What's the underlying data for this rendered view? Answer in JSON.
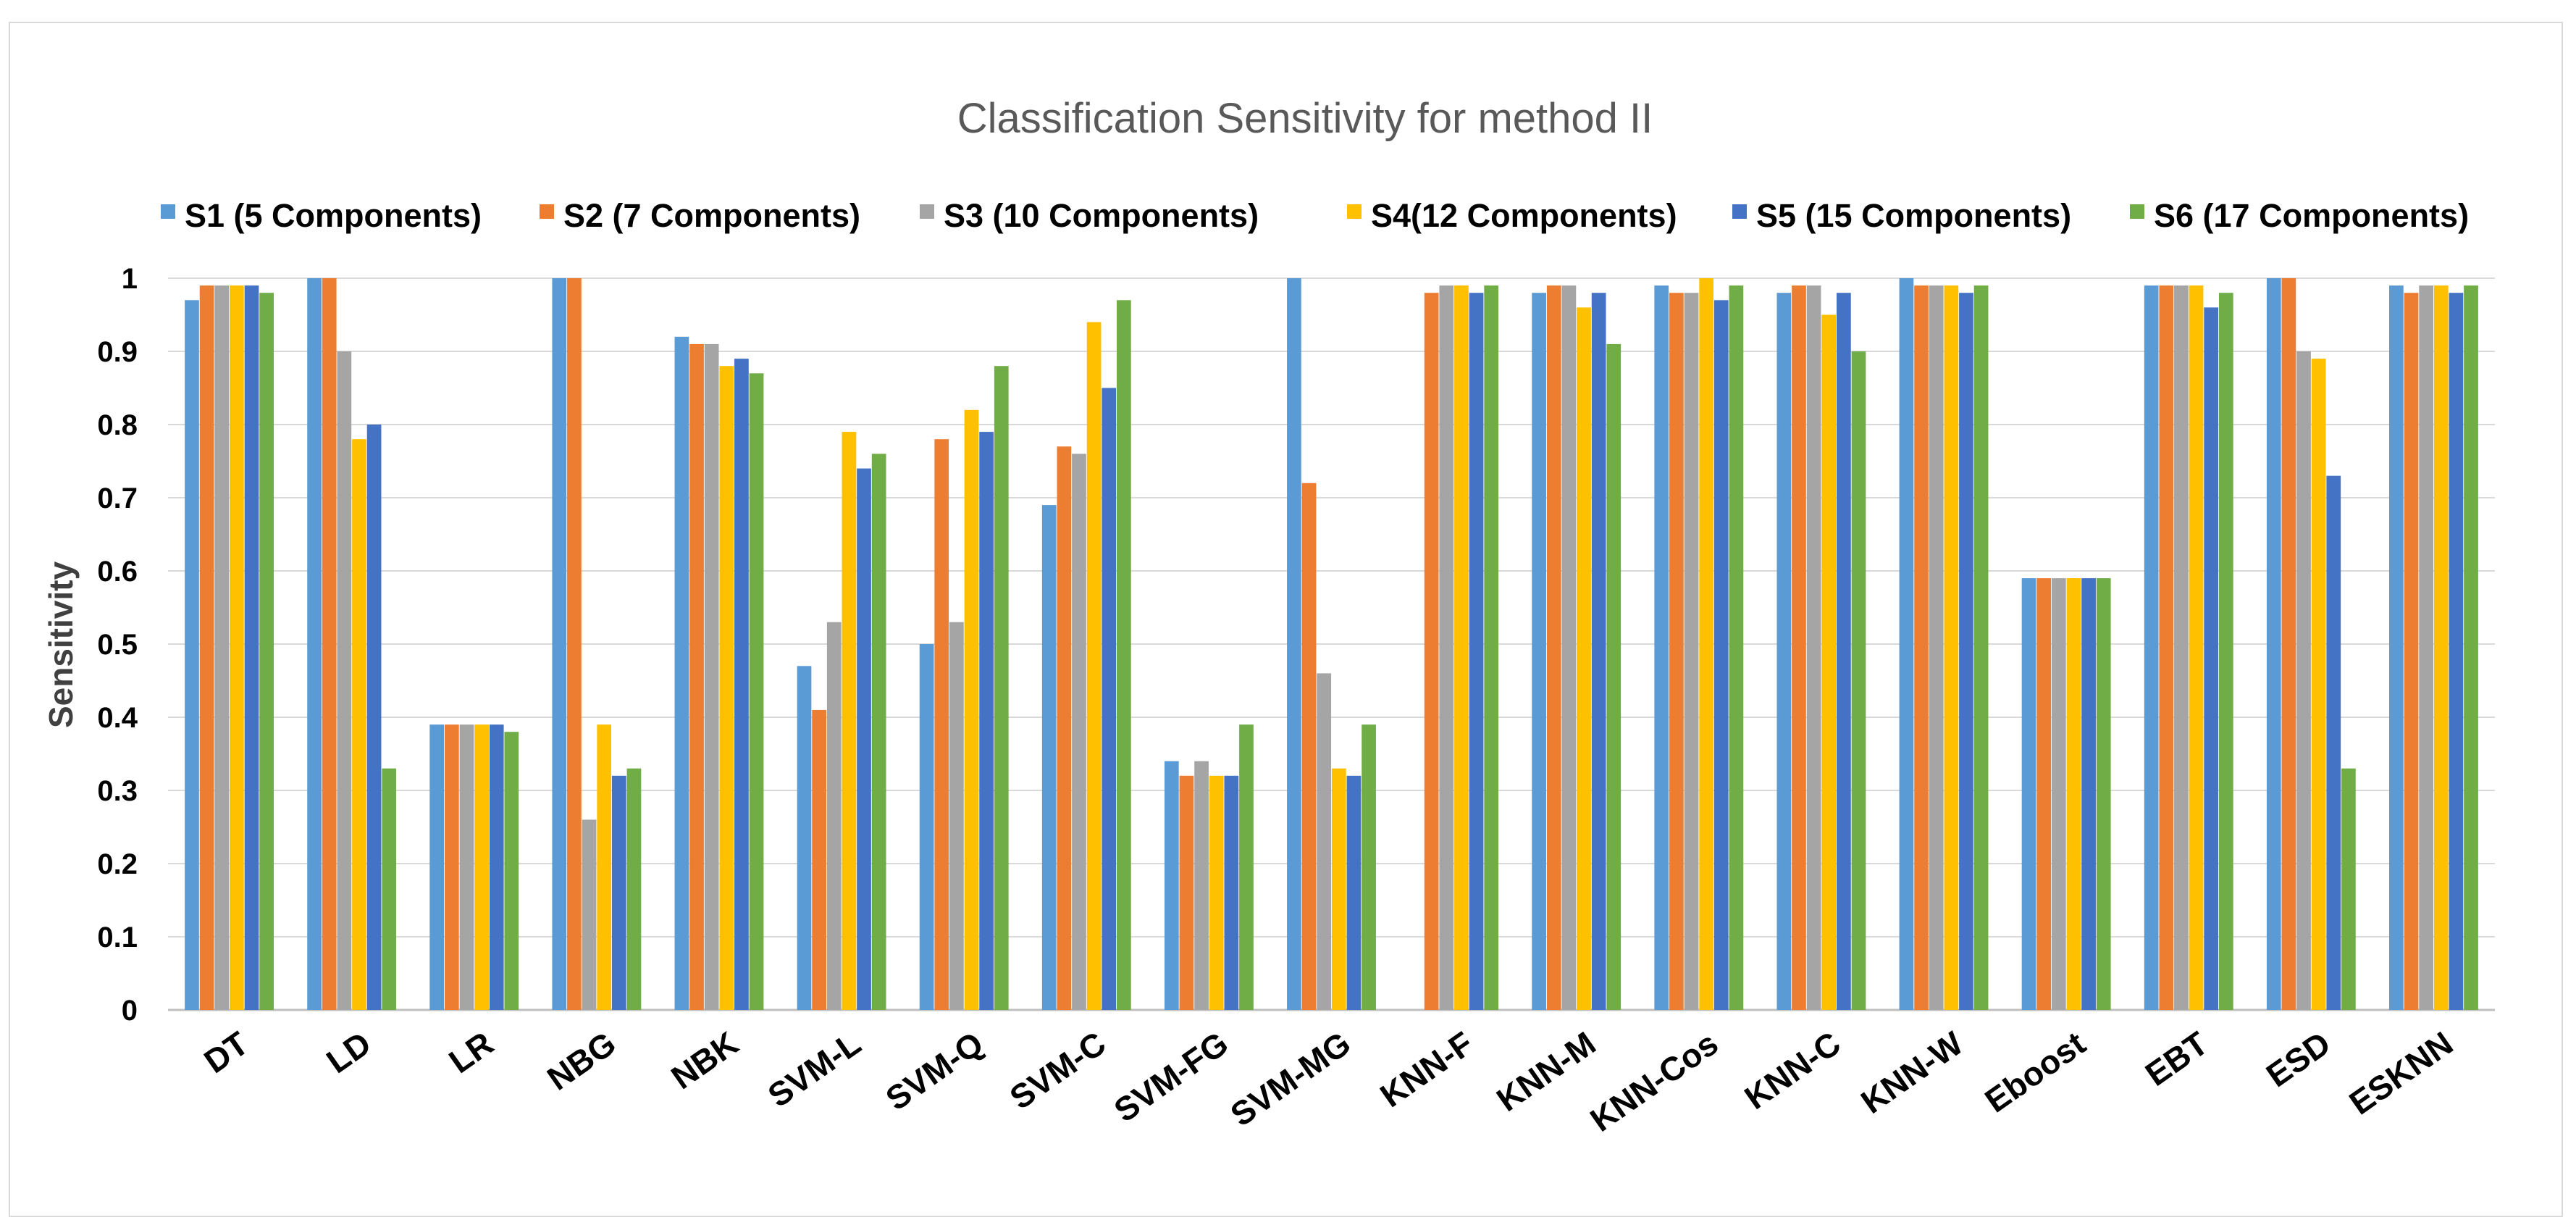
{
  "chart_data": {
    "type": "bar",
    "title": "Classification Sensitivity for method  II",
    "xlabel": "",
    "ylabel": "Sensitivity",
    "ylim": [
      0,
      1
    ],
    "yticks": [
      "0",
      "0.1",
      "0.2",
      "0.3",
      "0.4",
      "0.5",
      "0.6",
      "0.7",
      "0.8",
      "0.9",
      "1"
    ],
    "grid": true,
    "legend_position": "top",
    "categories": [
      "DT",
      "LD",
      "LR",
      "NBG",
      "NBK",
      "SVM-L",
      "SVM-Q",
      "SVM-C",
      "SVM-FG",
      "SVM-MG",
      "KNN-F",
      "KNN-M",
      "KNN-Cos",
      "KNN-C",
      "KNN-W",
      "Eboost",
      "EBT",
      "ESD",
      "ESKNN"
    ],
    "series": [
      {
        "name": "S1 (5 Components)",
        "color": "#5B9BD5",
        "values": [
          0.97,
          1.0,
          0.39,
          1.0,
          0.92,
          0.47,
          0.5,
          0.69,
          0.34,
          1.0,
          0.0,
          0.98,
          0.99,
          0.98,
          1.0,
          0.59,
          0.99,
          1.0,
          0.99
        ]
      },
      {
        "name": "S2 (7 Components)",
        "color": "#ED7D31",
        "values": [
          0.99,
          1.0,
          0.39,
          1.0,
          0.91,
          0.41,
          0.78,
          0.77,
          0.32,
          0.72,
          0.98,
          0.99,
          0.98,
          0.99,
          0.99,
          0.59,
          0.99,
          1.0,
          0.98
        ]
      },
      {
        "name": "S3 (10 Components)",
        "color": "#A5A5A5",
        "values": [
          0.99,
          0.9,
          0.39,
          0.26,
          0.91,
          0.53,
          0.53,
          0.76,
          0.34,
          0.46,
          0.99,
          0.99,
          0.98,
          0.99,
          0.99,
          0.59,
          0.99,
          0.9,
          0.99
        ]
      },
      {
        "name": "S4(12 Components)",
        "color": "#FFC000",
        "values": [
          0.99,
          0.78,
          0.39,
          0.39,
          0.88,
          0.79,
          0.82,
          0.94,
          0.32,
          0.33,
          0.99,
          0.96,
          1.0,
          0.95,
          0.99,
          0.59,
          0.99,
          0.89,
          0.99
        ]
      },
      {
        "name": "S5 (15 Components)",
        "color": "#4472C4",
        "values": [
          0.99,
          0.8,
          0.39,
          0.32,
          0.89,
          0.74,
          0.79,
          0.85,
          0.32,
          0.32,
          0.98,
          0.98,
          0.97,
          0.98,
          0.98,
          0.59,
          0.96,
          0.73,
          0.98
        ]
      },
      {
        "name": "S6 (17 Components)",
        "color": "#70AD47",
        "values": [
          0.98,
          0.33,
          0.38,
          0.33,
          0.87,
          0.76,
          0.88,
          0.97,
          0.39,
          0.39,
          0.99,
          0.91,
          0.99,
          0.9,
          0.99,
          0.59,
          0.98,
          0.33,
          0.99
        ]
      }
    ]
  }
}
